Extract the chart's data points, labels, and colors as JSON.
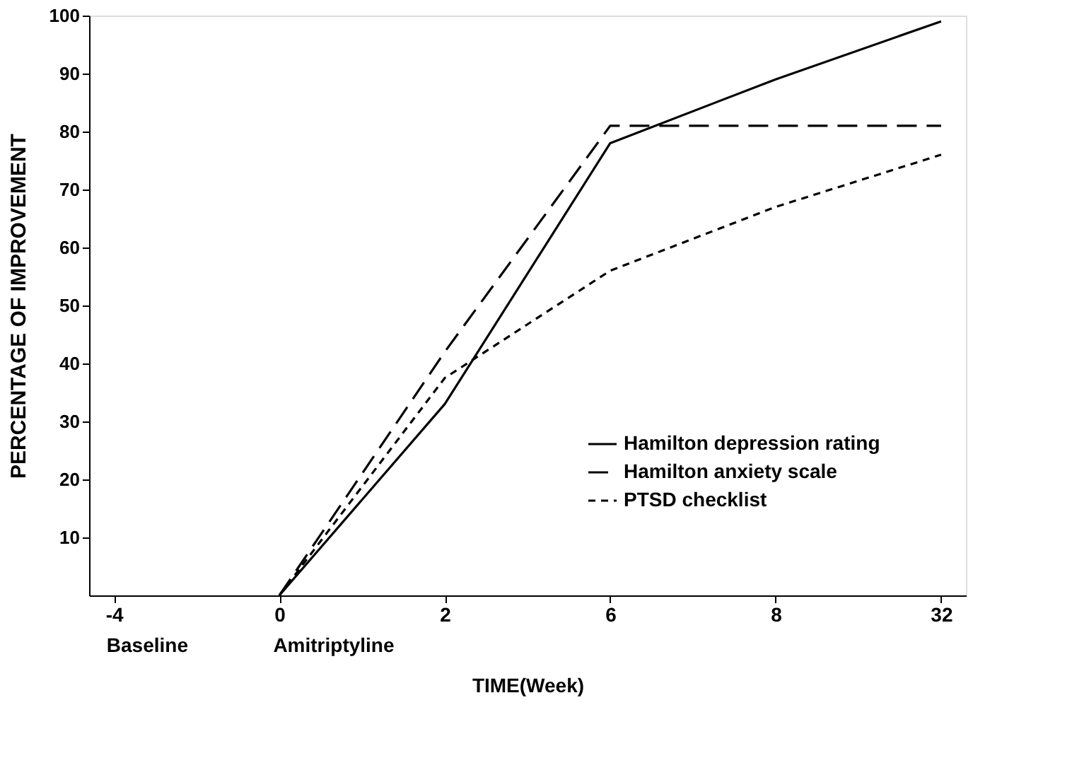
{
  "chart_data": {
    "type": "line",
    "xlabel": "TIME(Week)",
    "ylabel": "PERCENTAGE OF IMPROVEMENT",
    "categories": [
      "-4",
      "0",
      "2",
      "6",
      "8",
      "32"
    ],
    "series": [
      {
        "name": "Hamilton depression rating",
        "color": "#000000",
        "line_style": "solid",
        "values": [
          null,
          0,
          33,
          78,
          89,
          99
        ]
      },
      {
        "name": "Hamilton anxiety scale",
        "color": "#000000",
        "line_style": "dashed",
        "values": [
          null,
          0,
          42,
          81,
          81,
          81
        ]
      },
      {
        "name": "PTSD checklist",
        "color": "#000000",
        "line_style": "dotted",
        "values": [
          null,
          0,
          37.5,
          56,
          67,
          76
        ]
      }
    ],
    "ylim": [
      0,
      100
    ],
    "yticks": [
      10,
      20,
      30,
      40,
      50,
      60,
      70,
      80,
      90,
      100
    ],
    "grid": false,
    "legend": "bottom right",
    "marker": "none",
    "annotations": [
      "Baseline",
      "Amitriptyline"
    ]
  }
}
